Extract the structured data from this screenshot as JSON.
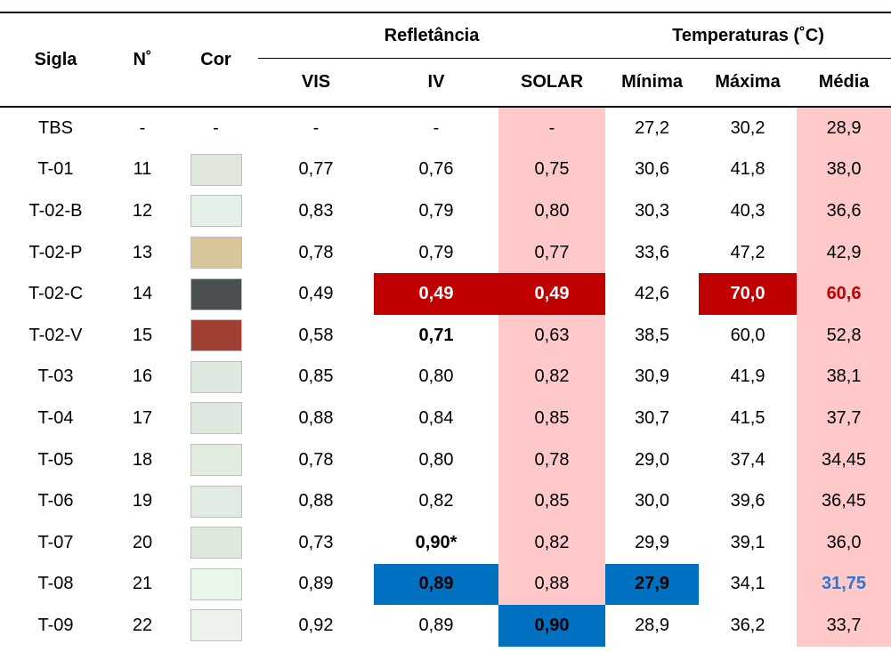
{
  "table": {
    "header": {
      "sigla": "Sigla",
      "n": "N˚",
      "cor": "Cor",
      "reflectance": "Refletância",
      "temperatures": "Temperaturas (˚C)",
      "columns": [
        "VIS",
        "IV",
        "SOLAR",
        "Mínima",
        "Máxima",
        "Média"
      ]
    },
    "rows": [
      {
        "cells": [
          "TBS",
          "-",
          "-",
          "-",
          "-",
          "-",
          "27,2",
          "30,2",
          "28,9"
        ]
      },
      {
        "cells": [
          "T-01",
          "11",
          null,
          "0,77",
          "0,76",
          "0,75",
          "30,6",
          "41,8",
          "38,0"
        ],
        "color": "#dfe6dc"
      },
      {
        "cells": [
          "T-02-B",
          "12",
          null,
          "0,83",
          "0,79",
          "0,80",
          "30,3",
          "40,3",
          "36,6"
        ],
        "color": "#e3f1e6"
      },
      {
        "cells": [
          "T-02-P",
          "13",
          null,
          "0,78",
          "0,79",
          "0,77",
          "33,6",
          "47,2",
          "42,9"
        ],
        "color": "#d8c59a"
      },
      {
        "cells": [
          "T-02-C",
          "14",
          null,
          "0,49",
          "0,49",
          "0,49",
          "42,6",
          "70,0",
          "60,6"
        ],
        "color": "#4a4f51"
      },
      {
        "cells": [
          "T-02-V",
          "15",
          null,
          "0,58",
          "0,71",
          "0,63",
          "38,5",
          "60,0",
          "52,8"
        ],
        "color": "#a04033"
      },
      {
        "cells": [
          "T-03",
          "16",
          null,
          "0,85",
          "0,80",
          "0,82",
          "30,9",
          "41,9",
          "38,1"
        ],
        "color": "#dde8de"
      },
      {
        "cells": [
          "T-04",
          "17",
          null,
          "0,88",
          "0,84",
          "0,85",
          "30,7",
          "41,5",
          "37,7"
        ],
        "color": "#dfe8df"
      },
      {
        "cells": [
          "T-05",
          "18",
          null,
          "0,78",
          "0,80",
          "0,78",
          "29,0",
          "37,4",
          "34,45"
        ],
        "color": "#e2ecde"
      },
      {
        "cells": [
          "T-06",
          "19",
          null,
          "0,88",
          "0,82",
          "0,85",
          "30,0",
          "39,6",
          "36,45"
        ],
        "color": "#e1ebe1"
      },
      {
        "cells": [
          "T-07",
          "20",
          null,
          "0,73",
          "0,90*",
          "0,82",
          "29,9",
          "39,1",
          "36,0"
        ],
        "color": "#dfe8dc"
      },
      {
        "cells": [
          "T-08",
          "21",
          null,
          "0,89",
          "0,89",
          "0,88",
          "27,9",
          "34,1",
          "31,75"
        ],
        "color": "#e9f6ea"
      },
      {
        "cells": [
          "T-09",
          "22",
          null,
          "0,92",
          "0,89",
          "0,90",
          "28,9",
          "36,2",
          "33,7"
        ],
        "color": "#ecf3eb"
      }
    ]
  }
}
